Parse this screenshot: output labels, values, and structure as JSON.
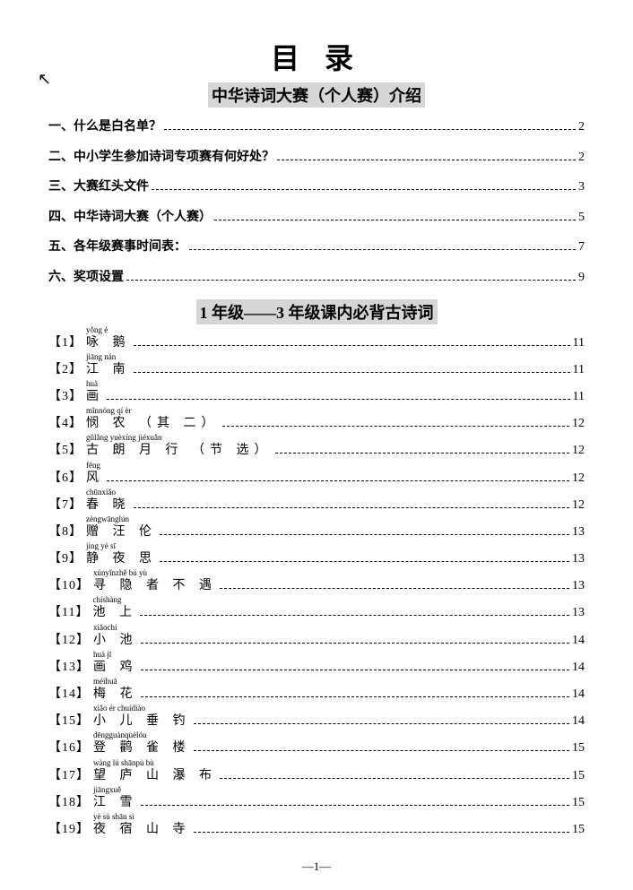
{
  "page_number_label": "—1—",
  "cursor_glyph": "↖",
  "main_title": "目 录",
  "subtitle_1": "中华诗词大赛（个人赛）介绍",
  "subtitle_2": "1 年级——3 年级课内必背古诗词",
  "sections": [
    {
      "label": "一、什么是白名单？",
      "page": "2"
    },
    {
      "label": "二、中小学生参加诗词专项赛有何好处？",
      "page": "2"
    },
    {
      "label": "三、大赛红头文件",
      "page": "3"
    },
    {
      "label": "四、中华诗词大赛（个人赛）",
      "page": "5"
    },
    {
      "label": "五、各年级赛事时间表：",
      "page": "7"
    },
    {
      "label": "六、奖项设置",
      "page": "9"
    }
  ],
  "poems": [
    {
      "idx": "【1】",
      "pinyin": "yǒng é",
      "title": "咏 鹅",
      "page": "11"
    },
    {
      "idx": "【2】",
      "pinyin": "jiāng nán",
      "title": "江 南",
      "page": "11"
    },
    {
      "idx": "【3】",
      "pinyin": "huà",
      "title": "画",
      "page": "11"
    },
    {
      "idx": "【4】",
      "pinyin": "mǐnnóng   qí èr",
      "title": "悯 农 （其 二）",
      "page": "12"
    },
    {
      "idx": "【5】",
      "pinyin": "gǔlǎng yuèxíng   jiéxuǎn",
      "title": "古 朗 月 行 （节 选）",
      "page": "12"
    },
    {
      "idx": "【6】",
      "pinyin": "fēng",
      "title": "风",
      "page": "12"
    },
    {
      "idx": "【7】",
      "pinyin": "chūnxiǎo",
      "title": "春 晓",
      "page": "12"
    },
    {
      "idx": "【8】",
      "pinyin": "zèngwānglún",
      "title": "赠 汪 伦",
      "page": "13"
    },
    {
      "idx": "【9】",
      "pinyin": "jìng yè sī",
      "title": "静 夜 思",
      "page": "13"
    },
    {
      "idx": "【10】",
      "pinyin": "xúnyǐnzhě bú yù",
      "title": "寻 隐 者 不 遇",
      "page": "13"
    },
    {
      "idx": "【11】",
      "pinyin": "chíshàng",
      "title": "池 上",
      "page": "13"
    },
    {
      "idx": "【12】",
      "pinyin": "xiǎochí",
      "title": "小 池",
      "page": "14"
    },
    {
      "idx": "【13】",
      "pinyin": "huà jī",
      "title": "画 鸡",
      "page": "14"
    },
    {
      "idx": "【14】",
      "pinyin": "méihuā",
      "title": "梅 花",
      "page": "14"
    },
    {
      "idx": "【15】",
      "pinyin": "xiǎo ér chuídiào",
      "title": "小 儿 垂 钓",
      "page": "14"
    },
    {
      "idx": "【16】",
      "pinyin": "dēngguànquèlóu",
      "title": "登 鹳 雀 楼",
      "page": "15"
    },
    {
      "idx": "【17】",
      "pinyin": "wàng lú shānpù bù",
      "title": "望 庐 山 瀑 布",
      "page": "15"
    },
    {
      "idx": "【18】",
      "pinyin": "jiāngxuě",
      "title": "江 雪",
      "page": "15"
    },
    {
      "idx": "【19】",
      "pinyin": "yè sù shān sì",
      "title": "夜 宿 山 寺",
      "page": "15"
    }
  ],
  "colors": {
    "background": "#ffffff",
    "text": "#000000",
    "highlight_bg": "#d6d6d6"
  },
  "typography": {
    "main_title_size_pt": 24,
    "subtitle_size_pt": 14,
    "body_size_pt": 10,
    "pinyin_size_pt": 7,
    "font_family": "SimSun"
  }
}
